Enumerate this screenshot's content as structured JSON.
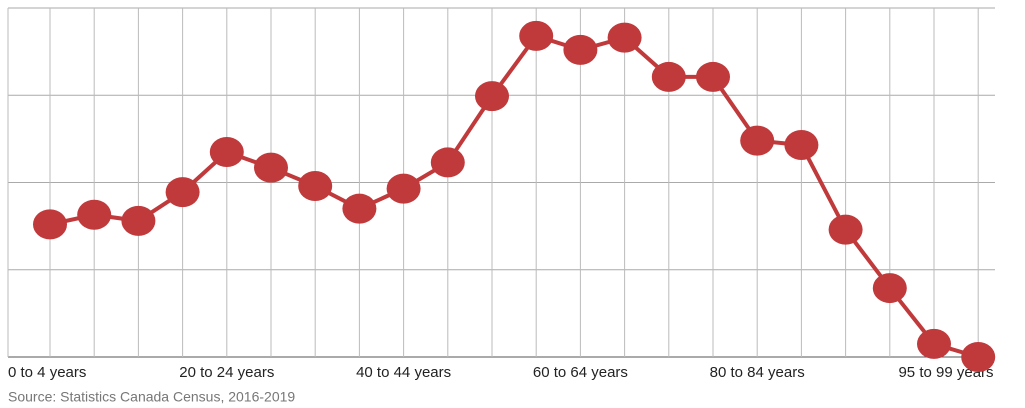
{
  "chart_data": {
    "type": "line",
    "source": "Source: Statistics Canada Census, 2016-2019",
    "categories": [
      "0 to 4 years",
      null,
      null,
      null,
      "20 to 24 years",
      null,
      null,
      null,
      "40 to 44 years",
      null,
      null,
      null,
      "60 to 64 years",
      null,
      null,
      null,
      "80 to 84 years",
      null,
      null,
      null,
      "95 to 99 years",
      null
    ],
    "series": [
      {
        "color": "#c0393b",
        "values": [
          1.52,
          1.63,
          1.56,
          1.89,
          2.35,
          2.17,
          1.96,
          1.7,
          1.93,
          2.23,
          2.99,
          3.68,
          3.52,
          3.66,
          3.21,
          3.21,
          2.48,
          2.43,
          1.46,
          0.79,
          0.15,
          0
        ]
      }
    ],
    "ylim": [
      0,
      4
    ],
    "yticks": [
      0,
      1,
      2,
      3,
      4
    ],
    "grid": true
  }
}
